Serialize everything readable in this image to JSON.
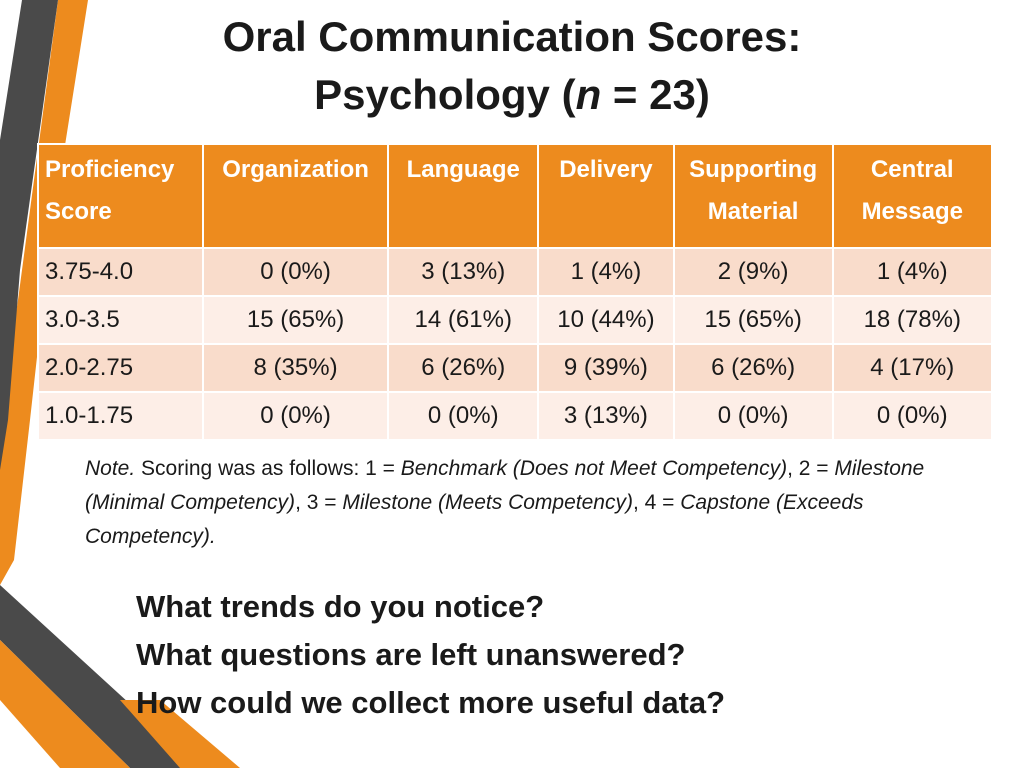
{
  "title": {
    "line1": "Oral Communication Scores:",
    "line2_prefix": "Psychology (",
    "line2_italic": "n",
    "line2_suffix": " = 23)"
  },
  "table": {
    "headers": [
      "Proficiency Score",
      "Organization",
      "Language",
      "Delivery",
      "Supporting Material",
      "Central Message"
    ],
    "rows": [
      [
        "3.75-4.0",
        "0 (0%)",
        "3 (13%)",
        "1 (4%)",
        "2 (9%)",
        "1 (4%)"
      ],
      [
        "3.0-3.5",
        "15 (65%)",
        "14 (61%)",
        "10 (44%)",
        "15 (65%)",
        "18 (78%)"
      ],
      [
        "2.0-2.75",
        "8 (35%)",
        "6 (26%)",
        "9 (39%)",
        "6 (26%)",
        "4 (17%)"
      ],
      [
        "1.0-1.75",
        "0 (0%)",
        "0 (0%)",
        "3 (13%)",
        "0 (0%)",
        "0 (0%)"
      ]
    ]
  },
  "note": {
    "label": "Note.",
    "t1": " Scoring was as follows: 1 = ",
    "i1": "Benchmark (Does not Meet Competency)",
    "t2": ", 2 = ",
    "i2": "Milestone (Minimal Competency)",
    "t3": ", 3 = ",
    "i3": "Milestone (Meets Competency)",
    "t4": ", 4 = ",
    "i4": "Capstone (Exceeds Competency)."
  },
  "questions": [
    "What trends do you notice?",
    "What questions are left unanswered?",
    "How could we collect more useful data?"
  ],
  "colors": {
    "accent_orange": "#ed8b1e",
    "stripe_gray": "#4a4a4a",
    "row_odd": "#f9dccb",
    "row_even": "#fdeee7"
  }
}
